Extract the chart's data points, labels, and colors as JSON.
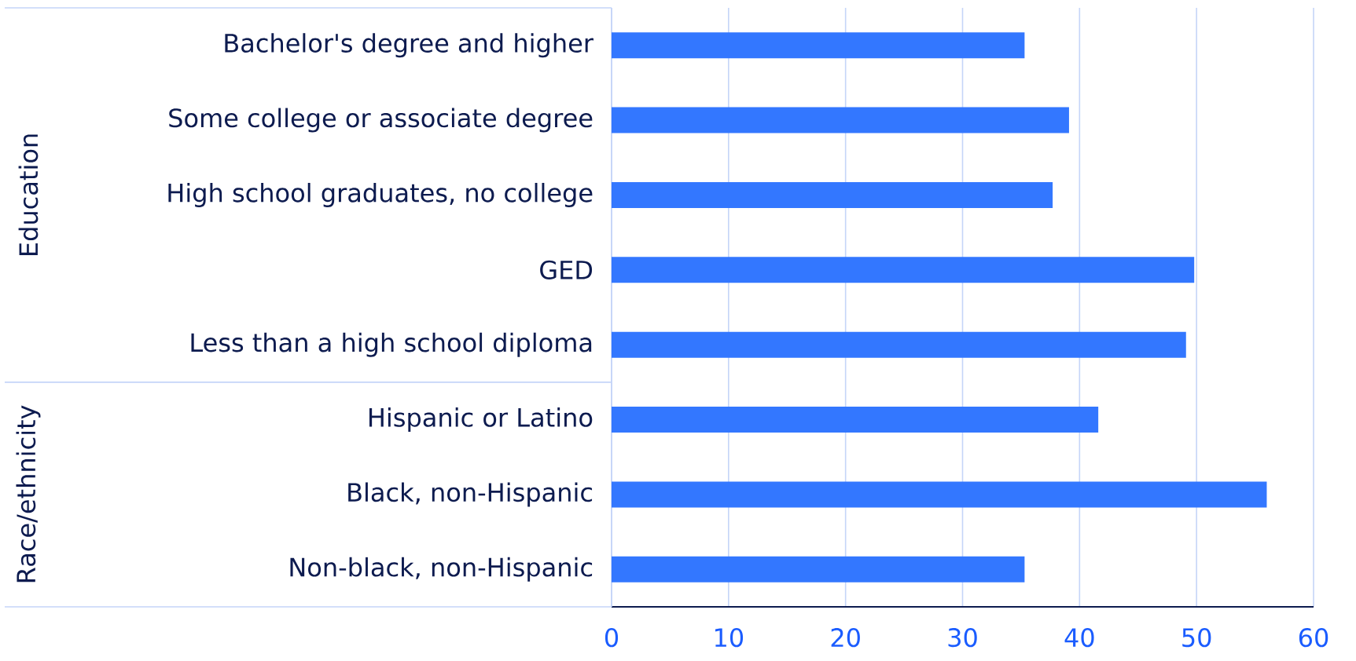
{
  "chart_data": {
    "type": "bar",
    "orientation": "horizontal",
    "categories": [
      "Bachelor's degree and higher",
      "Some college or associate degree",
      "High school graduates, no college",
      "GED",
      "Less than a high school diploma",
      "Hispanic or Latino",
      "Black, non-Hispanic",
      "Non-black, non-Hispanic"
    ],
    "values": [
      35.3,
      39.1,
      37.7,
      49.8,
      49.1,
      41.6,
      56.0,
      35.3
    ],
    "color": "#3377ff",
    "xlim": [
      0,
      60
    ],
    "xticks": [
      0,
      10,
      20,
      30,
      40,
      50,
      60
    ],
    "grid": "x",
    "annotations": [
      "Education",
      "Race/ethnicity"
    ]
  }
}
